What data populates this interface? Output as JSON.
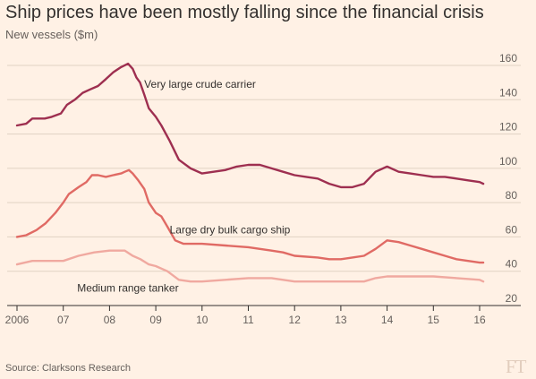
{
  "header": {
    "title": "Ship prices have been mostly falling since the financial crisis",
    "subtitle": "New vessels ($m)"
  },
  "footer": {
    "source": "Source: Clarksons Research",
    "logo": "FT"
  },
  "chart_data": {
    "type": "line",
    "title": "Ship prices have been mostly falling since the financial crisis",
    "subtitle": "New vessels ($m)",
    "xlabel": "",
    "ylabel": "",
    "xlim": [
      2006,
      2016
    ],
    "ylim": [
      20,
      160
    ],
    "yticks": [
      20,
      40,
      60,
      80,
      100,
      120,
      140,
      160
    ],
    "xticks": [
      {
        "value": 2006,
        "label": "2006"
      },
      {
        "value": 2007,
        "label": "07"
      },
      {
        "value": 2008,
        "label": "08"
      },
      {
        "value": 2009,
        "label": "09"
      },
      {
        "value": 2010,
        "label": "10"
      },
      {
        "value": 2011,
        "label": "11"
      },
      {
        "value": 2012,
        "label": "12"
      },
      {
        "value": 2013,
        "label": "13"
      },
      {
        "value": 2014,
        "label": "14"
      },
      {
        "value": 2015,
        "label": "15"
      },
      {
        "value": 2016,
        "label": "16"
      }
    ],
    "grid": "horizontal",
    "legend": "none",
    "series": [
      {
        "name": "Very large crude carrier",
        "color": "#9e2f50",
        "x": [
          2006.0,
          2006.2,
          2006.33,
          2006.6,
          2006.75,
          2006.95,
          2007.08,
          2007.25,
          2007.42,
          2007.58,
          2007.75,
          2007.92,
          2008.08,
          2008.25,
          2008.4,
          2008.5,
          2008.58,
          2008.66,
          2008.75,
          2008.85,
          2009.0,
          2009.12,
          2009.3,
          2009.5,
          2009.75,
          2010.0,
          2010.25,
          2010.5,
          2010.75,
          2011.0,
          2011.25,
          2011.5,
          2011.75,
          2012.0,
          2012.25,
          2012.5,
          2012.75,
          2013.0,
          2013.25,
          2013.5,
          2013.75,
          2014.0,
          2014.25,
          2014.5,
          2014.75,
          2015.0,
          2015.25,
          2015.5,
          2015.75,
          2016.0,
          2016.08
        ],
        "values": [
          125,
          126,
          129,
          129,
          130,
          132,
          137,
          140,
          144,
          146,
          148,
          152,
          156,
          159,
          161,
          158,
          153,
          150,
          143,
          135,
          130,
          125,
          116,
          105,
          100,
          97,
          98,
          99,
          101,
          102,
          102,
          100,
          98,
          96,
          95,
          94,
          91,
          89,
          89,
          91,
          98,
          101,
          98,
          97,
          96,
          95,
          95,
          94,
          93,
          92,
          91
        ]
      },
      {
        "name": "Large dry bulk cargo ship",
        "color": "#e06a64",
        "x": [
          2006.0,
          2006.2,
          2006.42,
          2006.62,
          2006.83,
          2007.0,
          2007.12,
          2007.33,
          2007.5,
          2007.62,
          2007.75,
          2007.92,
          2008.08,
          2008.25,
          2008.33,
          2008.42,
          2008.5,
          2008.62,
          2008.75,
          2008.85,
          2009.0,
          2009.12,
          2009.25,
          2009.42,
          2009.6,
          2010.0,
          2010.5,
          2011.0,
          2011.5,
          2011.75,
          2012.0,
          2012.5,
          2012.75,
          2013.0,
          2013.25,
          2013.5,
          2013.75,
          2014.0,
          2014.25,
          2014.5,
          2014.75,
          2015.0,
          2015.25,
          2015.5,
          2015.75,
          2016.0,
          2016.08
        ],
        "values": [
          60,
          61,
          64,
          68,
          74,
          80,
          85,
          89,
          92,
          96,
          96,
          95,
          96,
          97,
          98,
          99,
          97,
          93,
          88,
          80,
          74,
          72,
          66,
          58,
          56,
          56,
          55,
          54,
          52,
          51,
          49,
          48,
          47,
          47,
          48,
          49,
          53,
          58,
          57,
          55,
          53,
          51,
          49,
          47,
          46,
          45,
          45
        ]
      },
      {
        "name": "Medium range tanker",
        "color": "#f0a9a0",
        "x": [
          2006.0,
          2006.33,
          2006.67,
          2007.0,
          2007.33,
          2007.67,
          2008.0,
          2008.33,
          2008.5,
          2008.67,
          2008.85,
          2009.0,
          2009.25,
          2009.5,
          2009.75,
          2010.0,
          2010.5,
          2011.0,
          2011.5,
          2011.75,
          2012.0,
          2012.25,
          2012.5,
          2012.75,
          2013.0,
          2013.25,
          2013.5,
          2013.75,
          2014.0,
          2014.5,
          2015.0,
          2015.5,
          2016.0,
          2016.08
        ],
        "values": [
          44,
          46,
          46,
          46,
          49,
          51,
          52,
          52,
          49,
          47,
          44,
          43,
          40,
          35,
          34,
          34,
          35,
          36,
          36,
          35,
          34,
          34,
          34,
          34,
          34,
          34,
          34,
          36,
          37,
          37,
          37,
          36,
          35,
          34
        ]
      }
    ],
    "annotations": [
      {
        "text": "Very large crude carrier",
        "x": 2008.75,
        "y": 147
      },
      {
        "text": "Large dry bulk cargo ship",
        "x": 2009.3,
        "y": 62
      },
      {
        "text": "Medium range tanker",
        "x": 2007.3,
        "y": 28
      }
    ]
  }
}
